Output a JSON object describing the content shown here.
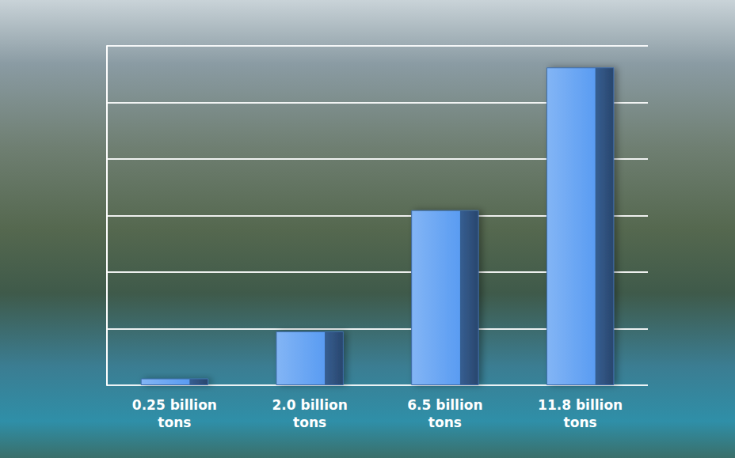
{
  "chart_data": {
    "type": "bar",
    "categories": [
      "0.25 billion tons",
      "2.0 billion tons",
      "6.5 billion tons",
      "11.8 billion tons"
    ],
    "values": [
      0.25,
      2.0,
      6.5,
      11.8
    ],
    "color": "#5a9cf2",
    "ylim": [
      0,
      12.6
    ],
    "yticks": [
      0,
      2.1,
      4.2,
      6.3,
      8.4,
      10.5,
      12.6
    ],
    "grid": true,
    "tick_labels": "x"
  }
}
